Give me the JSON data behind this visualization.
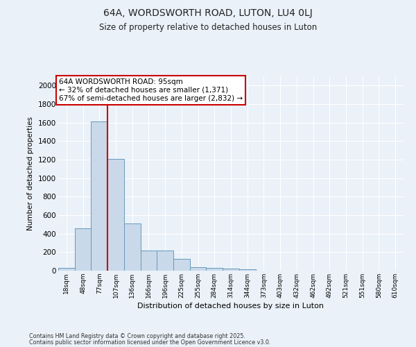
{
  "title1": "64A, WORDSWORTH ROAD, LUTON, LU4 0LJ",
  "title2": "Size of property relative to detached houses in Luton",
  "xlabel": "Distribution of detached houses by size in Luton",
  "ylabel": "Number of detached properties",
  "categories": [
    "18sqm",
    "48sqm",
    "77sqm",
    "107sqm",
    "136sqm",
    "166sqm",
    "196sqm",
    "225sqm",
    "255sqm",
    "284sqm",
    "314sqm",
    "344sqm",
    "373sqm",
    "403sqm",
    "432sqm",
    "462sqm",
    "492sqm",
    "521sqm",
    "551sqm",
    "580sqm",
    "610sqm"
  ],
  "bar_heights": [
    30,
    460,
    1610,
    1210,
    510,
    215,
    215,
    125,
    40,
    30,
    20,
    15,
    0,
    0,
    0,
    0,
    0,
    0,
    0,
    0,
    0
  ],
  "bar_color": "#c9d9ea",
  "bar_edge_color": "#6699bb",
  "background_color": "#eaf1f8",
  "grid_color": "#ffffff",
  "vline_x": 2.5,
  "vline_color": "#cc0000",
  "annotation_line1": "64A WORDSWORTH ROAD: 95sqm",
  "annotation_line2": "← 32% of detached houses are smaller (1,371)",
  "annotation_line3": "67% of semi-detached houses are larger (2,832) →",
  "annotation_box_facecolor": "#ffffff",
  "annotation_box_edgecolor": "#cc0000",
  "ylim": [
    0,
    2100
  ],
  "yticks": [
    0,
    200,
    400,
    600,
    800,
    1000,
    1200,
    1400,
    1600,
    1800,
    2000
  ],
  "footer1": "Contains HM Land Registry data © Crown copyright and database right 2025.",
  "footer2": "Contains public sector information licensed under the Open Government Licence v3.0."
}
